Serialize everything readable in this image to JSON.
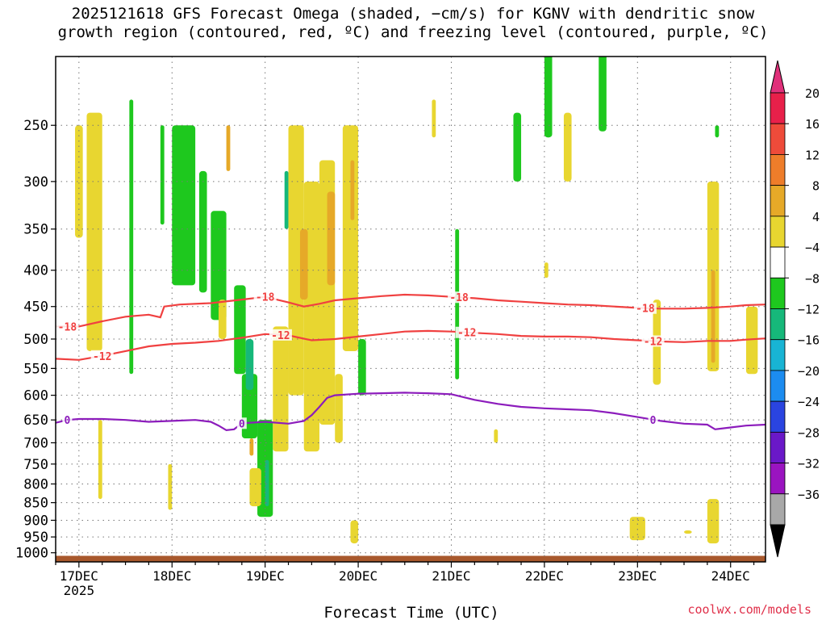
{
  "title_line1": "2025121618 GFS Forecast Omega (shaded, −cm/s) for KGNV with dendritic snow",
  "title_line2": "growth region (contoured, red, ºC) and freezing level (contoured, purple, ºC)",
  "credit": "coolwx.com/models",
  "chart_data": {
    "type": "heatmap",
    "title": "2025121618 GFS Forecast Omega (shaded, −cm/s) for KGNV with dendritic snow growth region (contoured, red, ºC) and freezing level (contoured, purple, ºC)",
    "xlabel": "Forecast Time (UTC)",
    "ylabel": "",
    "x_unit": "forecast hour from 2025-12-16 18Z",
    "xlim": [
      0,
      183
    ],
    "x_ticks": [
      {
        "hour": 6,
        "label": "17DEC",
        "sublabel": "2025"
      },
      {
        "hour": 30,
        "label": "18DEC"
      },
      {
        "hour": 54,
        "label": "19DEC"
      },
      {
        "hour": 78,
        "label": "20DEC"
      },
      {
        "hour": 102,
        "label": "21DEC"
      },
      {
        "hour": 126,
        "label": "22DEC"
      },
      {
        "hour": 150,
        "label": "23DEC"
      },
      {
        "hour": 174,
        "label": "24DEC"
      }
    ],
    "y_scale": "log-pressure (hPa, inverted)",
    "ylim": [
      1030,
      200
    ],
    "y_ticks": [
      250,
      300,
      350,
      400,
      450,
      500,
      550,
      600,
      650,
      700,
      750,
      800,
      850,
      900,
      950,
      1000
    ],
    "grid": true,
    "colorbar": {
      "labels": [
        "20",
        "16",
        "12",
        "8",
        "4",
        "−4",
        "−8",
        "−12",
        "−16",
        "−20",
        "−24",
        "−28",
        "−32",
        "−36"
      ],
      "colors": [
        "#e8204a",
        "#ee4b3a",
        "#ee7d2a",
        "#e6a928",
        "#e8d630",
        "#ffffff",
        "#1ec81e",
        "#16b87a",
        "#18b4d4",
        "#1c8cf0",
        "#2a44e0",
        "#6a18c8",
        "#9a14c0",
        "#a8a8a8"
      ],
      "top_arrow_color": "#e0307a",
      "bottom_arrow_color": "#000000"
    },
    "series": [
      {
        "name": "-18",
        "color": "#f04040",
        "x": [
          0,
          6,
          12,
          18,
          24,
          27,
          28,
          32,
          40,
          48,
          54,
          60,
          64,
          68,
          72,
          78,
          84,
          90,
          96,
          102,
          108,
          114,
          120,
          126,
          132,
          138,
          144,
          150,
          156,
          162,
          168,
          174,
          178,
          183
        ],
        "y": [
          480,
          480,
          472,
          465,
          462,
          466,
          450,
          447,
          445,
          440,
          436,
          444,
          450,
          446,
          441,
          438,
          435,
          433,
          434,
          436,
          438,
          441,
          443,
          445,
          447,
          448,
          450,
          452,
          453,
          453,
          452,
          450,
          448,
          447
        ]
      },
      {
        "name": "-12",
        "color": "#f04040",
        "x": [
          0,
          6,
          12,
          18,
          24,
          30,
          36,
          42,
          48,
          54,
          60,
          66,
          72,
          78,
          84,
          90,
          96,
          102,
          108,
          114,
          120,
          126,
          132,
          138,
          144,
          150,
          156,
          162,
          168,
          174,
          178,
          183
        ],
        "y": [
          533,
          535,
          528,
          520,
          512,
          508,
          506,
          503,
          498,
          492,
          494,
          502,
          500,
          496,
          492,
          488,
          487,
          488,
          490,
          492,
          495,
          496,
          496,
          497,
          500,
          502,
          504,
          505,
          503,
          503,
          501,
          499
        ]
      },
      {
        "name": "0",
        "color": "#8c1cbc",
        "x": [
          0,
          3,
          6,
          12,
          18,
          24,
          30,
          36,
          40,
          42,
          44,
          46,
          48,
          54,
          60,
          64,
          66,
          68,
          70,
          72,
          78,
          84,
          90,
          96,
          102,
          108,
          114,
          120,
          126,
          132,
          138,
          144,
          150,
          156,
          162,
          168,
          170,
          174,
          178,
          183
        ],
        "y": [
          656,
          650,
          648,
          648,
          650,
          654,
          652,
          650,
          654,
          662,
          672,
          670,
          657,
          654,
          658,
          652,
          640,
          623,
          605,
          600,
          597,
          596,
          595,
          596,
          598,
          609,
          617,
          623,
          626,
          628,
          630,
          636,
          644,
          652,
          658,
          660,
          670,
          666,
          662,
          660
        ]
      }
    ],
    "filled_regions": {
      "green_-4_to_-8": [
        {
          "h": [
            19,
            20
          ],
          "p": [
            230,
            560
          ]
        },
        {
          "h": [
            27,
            28
          ],
          "p": [
            250,
            345
          ]
        },
        {
          "h": [
            30,
            36
          ],
          "p": [
            250,
            420
          ]
        },
        {
          "h": [
            37,
            39
          ],
          "p": [
            290,
            430
          ]
        },
        {
          "h": [
            40,
            44
          ],
          "p": [
            330,
            470
          ]
        },
        {
          "h": [
            46,
            49
          ],
          "p": [
            420,
            560
          ]
        },
        {
          "h": [
            48,
            52
          ],
          "p": [
            560,
            690
          ]
        },
        {
          "h": [
            52,
            56
          ],
          "p": [
            650,
            890
          ]
        },
        {
          "h": [
            78,
            80
          ],
          "p": [
            500,
            600
          ]
        },
        {
          "h": [
            103,
            104
          ],
          "p": [
            350,
            570
          ]
        },
        {
          "h": [
            118,
            120
          ],
          "p": [
            240,
            300
          ]
        },
        {
          "h": [
            126,
            128
          ],
          "p": [
            180,
            260
          ]
        },
        {
          "h": [
            140,
            142
          ],
          "p": [
            180,
            255
          ]
        },
        {
          "h": [
            170,
            171
          ],
          "p": [
            250,
            260
          ]
        }
      ],
      "teal_-8_to_-12": [
        {
          "h": [
            49,
            51
          ],
          "p": [
            500,
            590
          ]
        },
        {
          "h": [
            54,
            55
          ],
          "p": [
            740,
            860
          ]
        },
        {
          "h": [
            59,
            60
          ],
          "p": [
            290,
            350
          ]
        }
      ],
      "yellow_4_to_8": [
        {
          "h": [
            5,
            7
          ],
          "p": [
            250,
            360
          ]
        },
        {
          "h": [
            8,
            12
          ],
          "p": [
            240,
            520
          ]
        },
        {
          "h": [
            11,
            12
          ],
          "p": [
            650,
            840
          ]
        },
        {
          "h": [
            29,
            30
          ],
          "p": [
            750,
            870
          ]
        },
        {
          "h": [
            42,
            44
          ],
          "p": [
            440,
            500
          ]
        },
        {
          "h": [
            50,
            53
          ],
          "p": [
            760,
            860
          ]
        },
        {
          "h": [
            56,
            60
          ],
          "p": [
            480,
            720
          ]
        },
        {
          "h": [
            60,
            64
          ],
          "p": [
            250,
            600
          ]
        },
        {
          "h": [
            64,
            68
          ],
          "p": [
            300,
            720
          ]
        },
        {
          "h": [
            68,
            72
          ],
          "p": [
            280,
            660
          ]
        },
        {
          "h": [
            72,
            74
          ],
          "p": [
            560,
            700
          ]
        },
        {
          "h": [
            74,
            78
          ],
          "p": [
            250,
            520
          ]
        },
        {
          "h": [
            76,
            78
          ],
          "p": [
            900,
            970
          ]
        },
        {
          "h": [
            97,
            98
          ],
          "p": [
            230,
            260
          ]
        },
        {
          "h": [
            113,
            114
          ],
          "p": [
            670,
            700
          ]
        },
        {
          "h": [
            126,
            127
          ],
          "p": [
            390,
            410
          ]
        },
        {
          "h": [
            131,
            133
          ],
          "p": [
            240,
            300
          ]
        },
        {
          "h": [
            154,
            156
          ],
          "p": [
            440,
            580
          ]
        },
        {
          "h": [
            148,
            152
          ],
          "p": [
            890,
            960
          ]
        },
        {
          "h": [
            162,
            164
          ],
          "p": [
            930,
            940
          ]
        },
        {
          "h": [
            168,
            171
          ],
          "p": [
            300,
            555
          ]
        },
        {
          "h": [
            168,
            171
          ],
          "p": [
            840,
            970
          ]
        },
        {
          "h": [
            178,
            181
          ],
          "p": [
            450,
            560
          ]
        }
      ],
      "orange_8_to_12": [
        {
          "h": [
            44,
            45
          ],
          "p": [
            250,
            290
          ]
        },
        {
          "h": [
            50,
            51
          ],
          "p": [
            690,
            730
          ]
        },
        {
          "h": [
            63,
            65
          ],
          "p": [
            350,
            440
          ]
        },
        {
          "h": [
            70,
            72
          ],
          "p": [
            310,
            420
          ]
        },
        {
          "h": [
            76,
            77
          ],
          "p": [
            280,
            340
          ]
        },
        {
          "h": [
            169,
            170
          ],
          "p": [
            400,
            540
          ]
        }
      ],
      "surface_ground": [
        {
          "p": [
            1010,
            1030
          ]
        }
      ]
    }
  }
}
